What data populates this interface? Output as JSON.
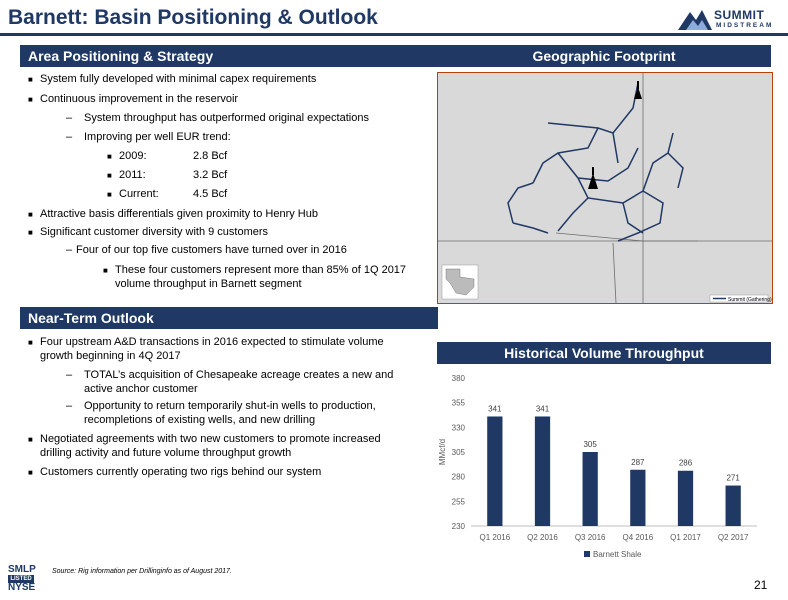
{
  "header": {
    "title": "Barnett: Basin Positioning & Outlook"
  },
  "logo": {
    "line1": "SUMMIT",
    "line2": "MIDSTREAM"
  },
  "area": {
    "heading": "Area Positioning & Strategy",
    "items": [
      "System fully developed with minimal capex requirements",
      "Continuous improvement in the reservoir",
      "System throughput has outperformed original expectations",
      "Improving per well EUR trend:",
      "2009:",
      "2.8 Bcf",
      "2011:",
      "3.2 Bcf",
      "Current:",
      "4.5 Bcf",
      "Attractive basis differentials given proximity to Henry Hub",
      "Significant customer diversity with 9 customers",
      "Four of our top five customers have turned over in 2016",
      "These four customers represent more than 85% of 1Q 2017",
      "volume throughput in Barnett segment"
    ]
  },
  "outlook": {
    "heading": "Near-Term Outlook",
    "items": [
      "Four upstream A&D transactions in 2016 expected to stimulate volume",
      "growth beginning in 4Q 2017",
      "TOTAL’s acquisition of Chesapeake acreage creates a new and",
      "active anchor customer",
      "Opportunity to return temporarily shut-in wells to production,",
      "recompletions of existing wells, and new drilling",
      "Negotiated agreements with two new customers to promote increased",
      "drilling activity and future volume throughput growth",
      "Customers currently operating two rigs behind our system"
    ]
  },
  "geo": {
    "heading": "Geographic Footprint",
    "legend": "Summit (Gathering)"
  },
  "hist": {
    "heading": "Historical Volume Throughput"
  },
  "chart_data": {
    "type": "bar",
    "categories": [
      "Q1 2016",
      "Q2 2016",
      "Q3 2016",
      "Q4 2016",
      "Q1 2017",
      "Q2 2017"
    ],
    "series": [
      {
        "name": "Barnett Shale",
        "values": [
          341,
          341,
          305,
          287,
          286,
          271
        ]
      }
    ],
    "ylabel": "MMcf/d",
    "ylim": [
      230,
      380
    ],
    "yticks": [
      230,
      255,
      280,
      305,
      330,
      355,
      380
    ],
    "grid": false,
    "legend": "bottom",
    "color": "#1f3864"
  },
  "footer": {
    "source": "Source: Rig information per Drillinginfo as of August 2017.",
    "page": "21",
    "smlp": "SMLP",
    "listed": "LISTED",
    "nyse": "NYSE"
  }
}
